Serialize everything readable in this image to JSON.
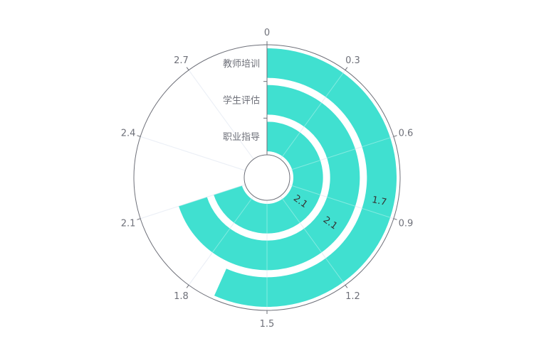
{
  "chart_data": {
    "type": "polar-bar",
    "categories": [
      "职业指导",
      "学生评估",
      "教师培训"
    ],
    "values": [
      2.1,
      2.1,
      1.7
    ],
    "data_labels": [
      "2.1",
      "2.1",
      "1.7"
    ],
    "angle_axis": {
      "min": 0,
      "max": 3,
      "ticks": [
        "0",
        "0.3",
        "0.6",
        "0.9",
        "1.2",
        "1.5",
        "1.8",
        "2.1",
        "2.4",
        "2.7"
      ]
    },
    "grid": true,
    "colors": {
      "bar": "#40e0d0",
      "axis": "#6e7079",
      "grid": "#e0e6f1",
      "label": "#6e7079",
      "data_label": "#333333"
    }
  }
}
